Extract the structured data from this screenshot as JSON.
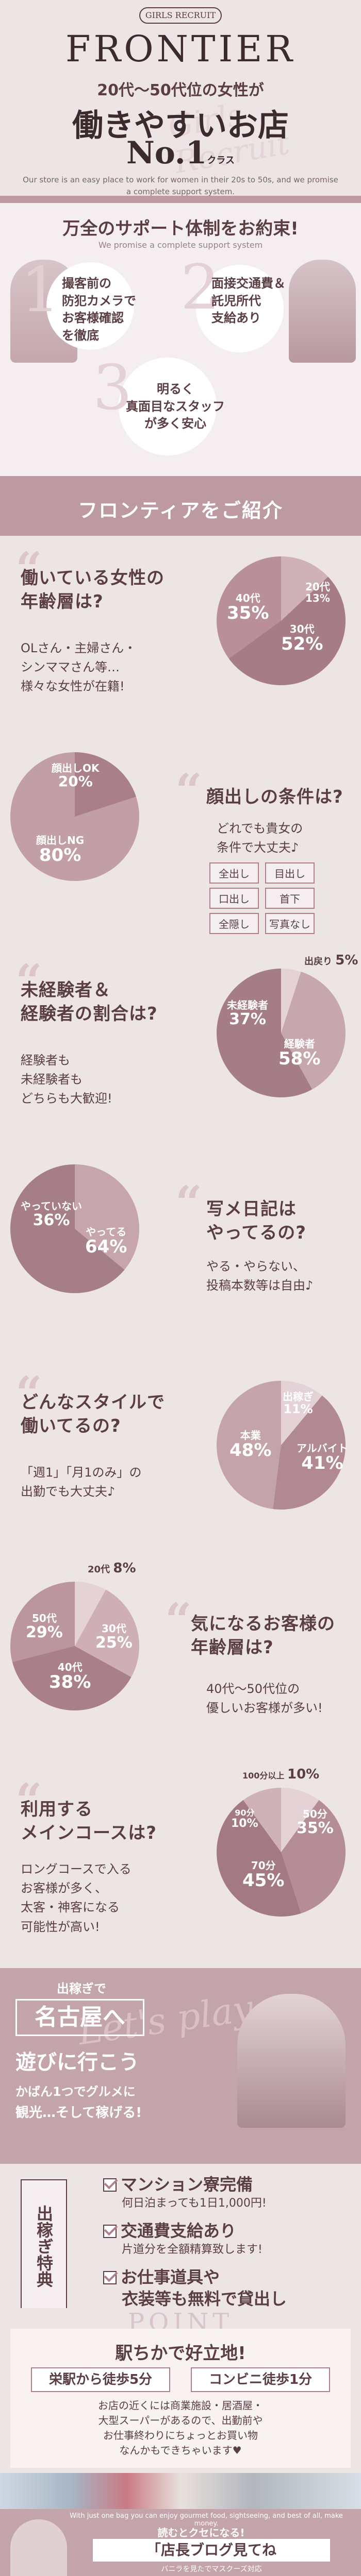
{
  "header": {
    "brand_small": "GIRLS RECRUIT",
    "logo": "FRONTIER",
    "tagline": "20代～50代位の女性が",
    "headline": "働きやすいお店",
    "rank": "No.1",
    "rank_note": "クラス",
    "script_bg": "Girls Recruit",
    "english": "Our store is an easy place to work for women in their 20s to 50s, and we promise a complete support system.",
    "colors": {
      "bg": "#ece4e5",
      "accent": "#b07f8a",
      "dark": "#5a3e44",
      "band": "#bd9aa2"
    }
  },
  "support": {
    "title": "万全のサポート体制をお約束!",
    "english": "We promise a complete support system",
    "items": [
      {
        "num": "1",
        "text": "撮客前の\n防犯カメラで\nお客様確認\nを徹底"
      },
      {
        "num": "2",
        "text": "面接交通費＆\n託児所代\n支給あり"
      },
      {
        "num": "3",
        "text": "明るく\n真面目なスタッフ\nが多く安心"
      }
    ]
  },
  "intro": {
    "title": "フロンティアをご紹介"
  },
  "q1": {
    "title": "働いている女性の\n年齢層は?",
    "sub": "OLさん・主婦さん・\nシンママさん等…\n様々な女性が在籍!",
    "chart_data": {
      "type": "pie",
      "categories": [
        "20代",
        "30代",
        "40代"
      ],
      "values": [
        13,
        52,
        35
      ]
    }
  },
  "q2": {
    "title": "顔出しの条件は?",
    "sub": "どれでも貴女の\n条件で大丈夫♪",
    "tags": [
      "全出し",
      "目出し",
      "口出し",
      "首下",
      "全隠し",
      "写真なし"
    ],
    "chart_data": {
      "type": "pie",
      "categories": [
        "顔出しOK",
        "顔出しNG"
      ],
      "values": [
        20,
        80
      ]
    }
  },
  "q3": {
    "title": "未経験者＆\n経験者の割合は?",
    "sub": "経験者も\n未経験者も\nどちらも大歓迎!",
    "chart_data": {
      "type": "pie",
      "categories": [
        "出戻り",
        "未経験者",
        "経験者"
      ],
      "values": [
        5,
        37,
        58
      ]
    }
  },
  "q4": {
    "title": "写メ日記は\nやってるの?",
    "sub": "やる・やらない、\n投稿本数等は自由♪",
    "chart_data": {
      "type": "pie",
      "categories": [
        "やっていない",
        "やってる"
      ],
      "values": [
        36,
        64
      ]
    }
  },
  "q5": {
    "title": "どんなスタイルで\n働いてるの?",
    "sub": "「週1」「月1のみ」の\n出勤でも大丈夫♪",
    "chart_data": {
      "type": "pie",
      "categories": [
        "出稼ぎ",
        "アルバイト",
        "本業"
      ],
      "values": [
        11,
        41,
        48
      ]
    }
  },
  "q6": {
    "title": "気になるお客様の\n年齢層は?",
    "sub": "40代～50代位の\n優しいお客様が多い!",
    "chart_data": {
      "type": "pie",
      "categories": [
        "20代",
        "30代",
        "40代",
        "50代"
      ],
      "values": [
        8,
        25,
        38,
        29
      ]
    }
  },
  "q7": {
    "title": "利用する\nメインコースは?",
    "sub": "ロングコースで入る\nお客様が多く、\n太客・神客になる\n可能性が高い!",
    "chart_data": {
      "type": "pie",
      "categories": [
        "100分以上",
        "50分",
        "70分",
        "90分"
      ],
      "values": [
        10,
        35,
        45,
        10
      ]
    }
  },
  "dekasegi": {
    "small": "出稼ぎで",
    "title1": "名古屋へ",
    "title2": "遊びに行こう",
    "sub1": "かばん1つでグルメに",
    "sub2": "観光…そして稼げる!",
    "script_bg": "Let's play",
    "vertical": "出稼ぎ特典",
    "benefits": [
      {
        "h": "マンション寮完備",
        "s": "何日泊まっても1日1,000円!"
      },
      {
        "h": "交通費支給あり",
        "s": "片道分を全額精算致します!"
      },
      {
        "h": "お仕事道具や",
        "s": ""
      },
      {
        "h": "衣装等も無料で貸出し",
        "s": ""
      }
    ]
  },
  "point": {
    "label": "POINT",
    "title": "駅ちかで好立地!",
    "box1": "栄駅から徒歩5分",
    "box2": "コンビニ徒歩1分",
    "body": "お店の近くには商業施設・居酒屋・\n大型スーパーがあるので、出勤前や\nお仕事終わりにちょっとお買い物\nなんかもできちゃいます♥"
  },
  "footer": {
    "english": "With just one bag you can enjoy gourmet food, sightseeing, and best of all, make money.",
    "line1": "読むとクセになる!",
    "line2": "「店長ブログ見てね",
    "line3": "バニラを見たでマスクーズ対応"
  }
}
